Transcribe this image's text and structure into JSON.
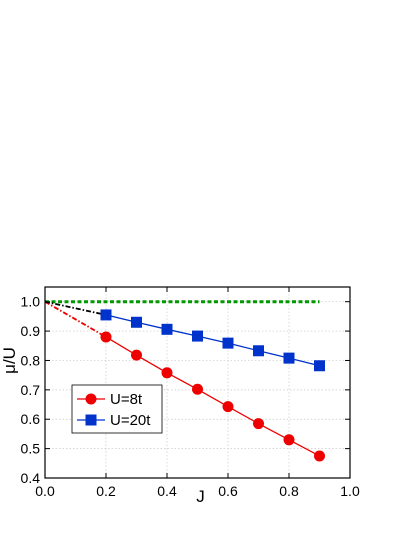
{
  "chart_data": {
    "type": "line",
    "title": "",
    "xlabel": "J",
    "ylabel": "μ/U",
    "xlim": [
      0.0,
      1.0
    ],
    "ylim": [
      0.4,
      1.05
    ],
    "x_ticks": [
      0.0,
      0.2,
      0.4,
      0.6,
      0.8,
      1.0
    ],
    "x_tick_labels": [
      "0.0",
      "0.2",
      "0.4",
      "0.6",
      "0.8",
      "1.0"
    ],
    "y_ticks": [
      0.4,
      0.5,
      0.6,
      0.7,
      0.8,
      0.9,
      1.0
    ],
    "y_tick_labels": [
      "0.4",
      "0.5",
      "0.6",
      "0.7",
      "0.8",
      "0.9",
      "1.0"
    ],
    "grid": true,
    "legend_position": "lower-left",
    "series": [
      {
        "name": "U=8t",
        "color": "#ee0000",
        "marker": "circle",
        "x": [
          0.2,
          0.3,
          0.4,
          0.5,
          0.6,
          0.7,
          0.8,
          0.9
        ],
        "y": [
          0.88,
          0.818,
          0.758,
          0.702,
          0.643,
          0.585,
          0.53,
          0.475
        ]
      },
      {
        "name": "U=20t",
        "color": "#0033cc",
        "marker": "square",
        "x": [
          0.2,
          0.3,
          0.4,
          0.5,
          0.6,
          0.7,
          0.8,
          0.9
        ],
        "y": [
          0.955,
          0.93,
          0.906,
          0.883,
          0.859,
          0.833,
          0.808,
          0.782
        ]
      }
    ],
    "extrapolations": [
      {
        "color": "#ee0000",
        "x": [
          0.0,
          0.2
        ],
        "y": [
          1.0,
          0.88
        ]
      },
      {
        "color": "#000000",
        "x": [
          0.0,
          0.2
        ],
        "y": [
          1.0,
          0.955
        ]
      }
    ],
    "reference_line": {
      "color": "#009900",
      "x": [
        0.0,
        0.9
      ],
      "y": [
        1.0,
        1.0
      ]
    }
  }
}
